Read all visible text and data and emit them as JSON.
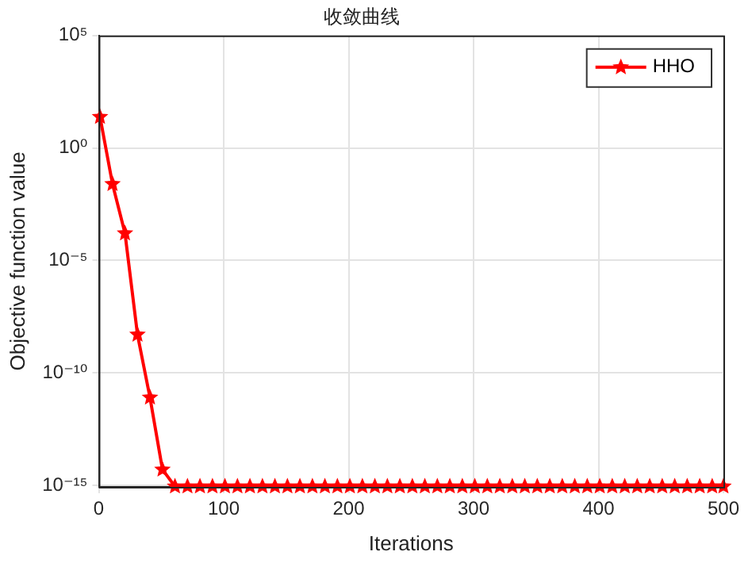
{
  "chart_data": {
    "type": "line",
    "title": "收敛曲线",
    "xlabel": "Iterations",
    "ylabel": "Objective function value",
    "x": [
      1,
      11,
      21,
      31,
      41,
      51,
      61,
      71,
      81,
      91,
      101,
      111,
      121,
      131,
      141,
      151,
      161,
      171,
      181,
      191,
      201,
      211,
      221,
      231,
      241,
      251,
      261,
      271,
      281,
      291,
      301,
      311,
      321,
      331,
      341,
      351,
      361,
      371,
      381,
      391,
      401,
      411,
      421,
      431,
      441,
      451,
      461,
      471,
      481,
      491,
      500
    ],
    "series": [
      {
        "name": "HHO",
        "color": "#ff0000",
        "values": [
          24,
          0.025,
          0.00016,
          5e-09,
          8e-12,
          5e-15,
          8.9e-16,
          8.9e-16,
          8.9e-16,
          8.9e-16,
          8.9e-16,
          8.9e-16,
          8.9e-16,
          8.9e-16,
          8.9e-16,
          8.9e-16,
          8.9e-16,
          8.9e-16,
          8.9e-16,
          8.9e-16,
          8.9e-16,
          8.9e-16,
          8.9e-16,
          8.9e-16,
          8.9e-16,
          8.9e-16,
          8.9e-16,
          8.9e-16,
          8.9e-16,
          8.9e-16,
          8.9e-16,
          8.9e-16,
          8.9e-16,
          8.9e-16,
          8.9e-16,
          8.9e-16,
          8.9e-16,
          8.9e-16,
          8.9e-16,
          8.9e-16,
          8.9e-16,
          8.9e-16,
          8.9e-16,
          8.9e-16,
          8.9e-16,
          8.9e-16,
          8.9e-16,
          8.9e-16,
          8.9e-16,
          8.9e-16,
          8.9e-16
        ]
      }
    ],
    "xlim": [
      0,
      500
    ],
    "xticks": [
      0,
      100,
      200,
      300,
      400,
      500
    ],
    "ylim": [
      8.5e-16,
      100000
    ],
    "yticks": [
      {
        "value": 1e-15,
        "label": "10⁻¹⁵"
      },
      {
        "value": 1e-10,
        "label": "10⁻¹⁰"
      },
      {
        "value": 1e-05,
        "label": "10⁻⁵"
      },
      {
        "value": 1,
        "label": "10⁰"
      },
      {
        "value": 100000,
        "label": "10⁵"
      }
    ],
    "log": "y",
    "grid": true,
    "legend": "top right",
    "marker": "star",
    "line_style": "solid"
  }
}
